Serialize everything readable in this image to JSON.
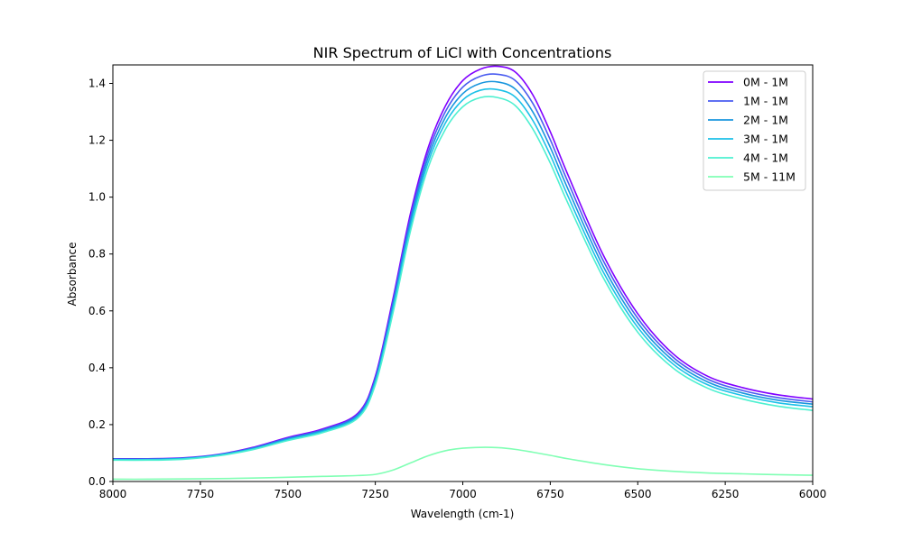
{
  "chart_data": {
    "type": "line",
    "title": "NIR Spectrum of LiCl with Concentrations",
    "xlabel": "Wavelength (cm-1)",
    "ylabel": "Absorbance",
    "xlim": [
      8000,
      6000
    ],
    "ylim": [
      0,
      1.465
    ],
    "x_inverted": true,
    "xticks": [
      8000,
      7750,
      7500,
      7250,
      7000,
      6750,
      6500,
      6250,
      6000
    ],
    "yticks": [
      0.0,
      0.2,
      0.4,
      0.6,
      0.8,
      1.0,
      1.2,
      1.4
    ],
    "xtick_labels": [
      "8000",
      "7750",
      "7500",
      "7250",
      "7000",
      "6750",
      "6500",
      "6250",
      "6000"
    ],
    "ytick_labels": [
      "0.0",
      "0.2",
      "0.4",
      "0.6",
      "0.8",
      "1.0",
      "1.2",
      "1.4"
    ],
    "grid": false,
    "legend_position": "top-right",
    "x": [
      8000,
      7900,
      7800,
      7700,
      7600,
      7500,
      7400,
      7300,
      7250,
      7200,
      7150,
      7100,
      7050,
      7000,
      6950,
      6900,
      6850,
      6800,
      6750,
      6700,
      6600,
      6500,
      6400,
      6300,
      6200,
      6100,
      6000
    ],
    "series": [
      {
        "name": "0M - 1M",
        "color": "#8000ff",
        "values": [
          0.08,
          0.08,
          0.083,
          0.095,
          0.12,
          0.155,
          0.185,
          0.24,
          0.37,
          0.64,
          0.94,
          1.17,
          1.32,
          1.41,
          1.45,
          1.46,
          1.44,
          1.36,
          1.23,
          1.08,
          0.8,
          0.59,
          0.45,
          0.37,
          0.33,
          0.305,
          0.29
        ]
      },
      {
        "name": "1M - 1M",
        "color": "#4a5cf0",
        "values": [
          0.079,
          0.079,
          0.082,
          0.094,
          0.118,
          0.152,
          0.182,
          0.236,
          0.362,
          0.628,
          0.925,
          1.153,
          1.3,
          1.387,
          1.425,
          1.432,
          1.41,
          1.33,
          1.202,
          1.055,
          0.78,
          0.574,
          0.438,
          0.36,
          0.32,
          0.295,
          0.28
        ]
      },
      {
        "name": "2M - 1M",
        "color": "#1996de",
        "values": [
          0.078,
          0.078,
          0.081,
          0.093,
          0.116,
          0.15,
          0.179,
          0.232,
          0.355,
          0.616,
          0.91,
          1.136,
          1.28,
          1.364,
          1.4,
          1.405,
          1.38,
          1.3,
          1.175,
          1.03,
          0.76,
          0.558,
          0.426,
          0.35,
          0.311,
          0.286,
          0.272
        ]
      },
      {
        "name": "3M - 1M",
        "color": "#1cc1e8",
        "values": [
          0.077,
          0.077,
          0.08,
          0.092,
          0.114,
          0.147,
          0.176,
          0.228,
          0.348,
          0.604,
          0.895,
          1.119,
          1.26,
          1.342,
          1.376,
          1.378,
          1.352,
          1.27,
          1.148,
          1.005,
          0.74,
          0.542,
          0.414,
          0.34,
          0.302,
          0.277,
          0.263
        ]
      },
      {
        "name": "4M - 1M",
        "color": "#4df0d0",
        "values": [
          0.075,
          0.075,
          0.078,
          0.09,
          0.112,
          0.144,
          0.172,
          0.223,
          0.34,
          0.59,
          0.878,
          1.1,
          1.238,
          1.318,
          1.35,
          1.35,
          1.322,
          1.24,
          1.12,
          0.98,
          0.72,
          0.525,
          0.4,
          0.328,
          0.29,
          0.265,
          0.25
        ]
      },
      {
        "name": "5M - 11M",
        "color": "#80ffb4",
        "values": [
          0.008,
          0.008,
          0.009,
          0.01,
          0.012,
          0.015,
          0.018,
          0.021,
          0.025,
          0.04,
          0.065,
          0.09,
          0.108,
          0.117,
          0.12,
          0.119,
          0.113,
          0.103,
          0.092,
          0.08,
          0.06,
          0.045,
          0.036,
          0.03,
          0.027,
          0.024,
          0.022
        ]
      }
    ]
  }
}
